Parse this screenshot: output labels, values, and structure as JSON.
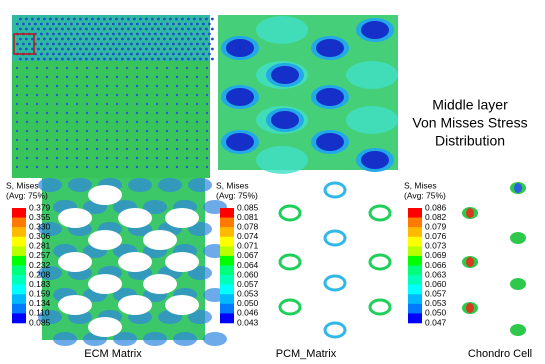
{
  "description": {
    "lines": [
      "Middle layer",
      "Von Misses Stress",
      "Distribution"
    ]
  },
  "panels": [
    {
      "label": "ECM  Matrix",
      "legend": {
        "title": "S, Mises",
        "subtitle": "(Avg: 75%)",
        "values": [
          "0.379",
          "0.355",
          "0.330",
          "0.306",
          "0.281",
          "0.257",
          "0.232",
          "0.208",
          "0.183",
          "0.159",
          "0.134",
          "0.110",
          "0.085"
        ]
      }
    },
    {
      "label": "PCM_Matrix",
      "legend": {
        "title": "S, Mises",
        "subtitle": "(Avg: 75%)",
        "values": [
          "0.085",
          "0.081",
          "0.078",
          "0.074",
          "0.071",
          "0.067",
          "0.064",
          "0.060",
          "0.057",
          "0.053",
          "0.050",
          "0.046",
          "0.043"
        ]
      }
    },
    {
      "label": "Chondro  Cell",
      "legend": {
        "title": "S, Mises",
        "subtitle": "(Avg: 75%)",
        "values": [
          "0.086",
          "0.082",
          "0.079",
          "0.076",
          "0.073",
          "0.069",
          "0.066",
          "0.063",
          "0.060",
          "0.057",
          "0.053",
          "0.050",
          "0.047"
        ]
      }
    }
  ]
}
